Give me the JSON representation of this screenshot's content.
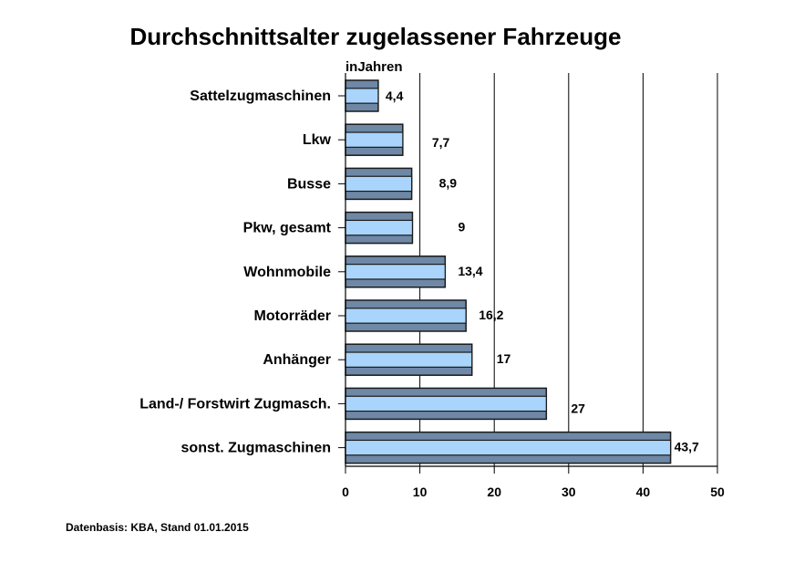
{
  "chart_data": {
    "type": "bar",
    "orientation": "horizontal",
    "title": "Durchschnittsalter zugelassener Fahrzeuge",
    "unit_label": "inJahren",
    "categories": [
      "Sattelzugmaschinen",
      "Lkw",
      "Busse",
      "Pkw, gesamt",
      "Wohnmobile",
      "Motorräder",
      "Anhänger",
      "Land-/ Forstwirt Zugmasch.",
      "sonst. Zugmaschinen"
    ],
    "values": [
      4.4,
      7.7,
      8.9,
      9,
      13.4,
      16.2,
      17,
      27,
      43.7
    ],
    "value_labels": [
      "4,4",
      "7,7",
      "8,9",
      "9",
      "13,4",
      "16,2",
      "17",
      "27",
      "43,7"
    ],
    "xlim": [
      0,
      50
    ],
    "xticks": [
      0,
      10,
      20,
      30,
      40,
      50
    ],
    "xtick_labels": [
      "0",
      "10",
      "20",
      "30",
      "40",
      "50"
    ],
    "grid": "vertical",
    "source_note": "Datenbasis: KBA, Stand 01.01.2015",
    "colors": {
      "bar_fill": "#a9d4fb",
      "bar_band": "#6e88a6",
      "bar_stroke": "#1a1a1a",
      "grid": "#000000"
    }
  }
}
